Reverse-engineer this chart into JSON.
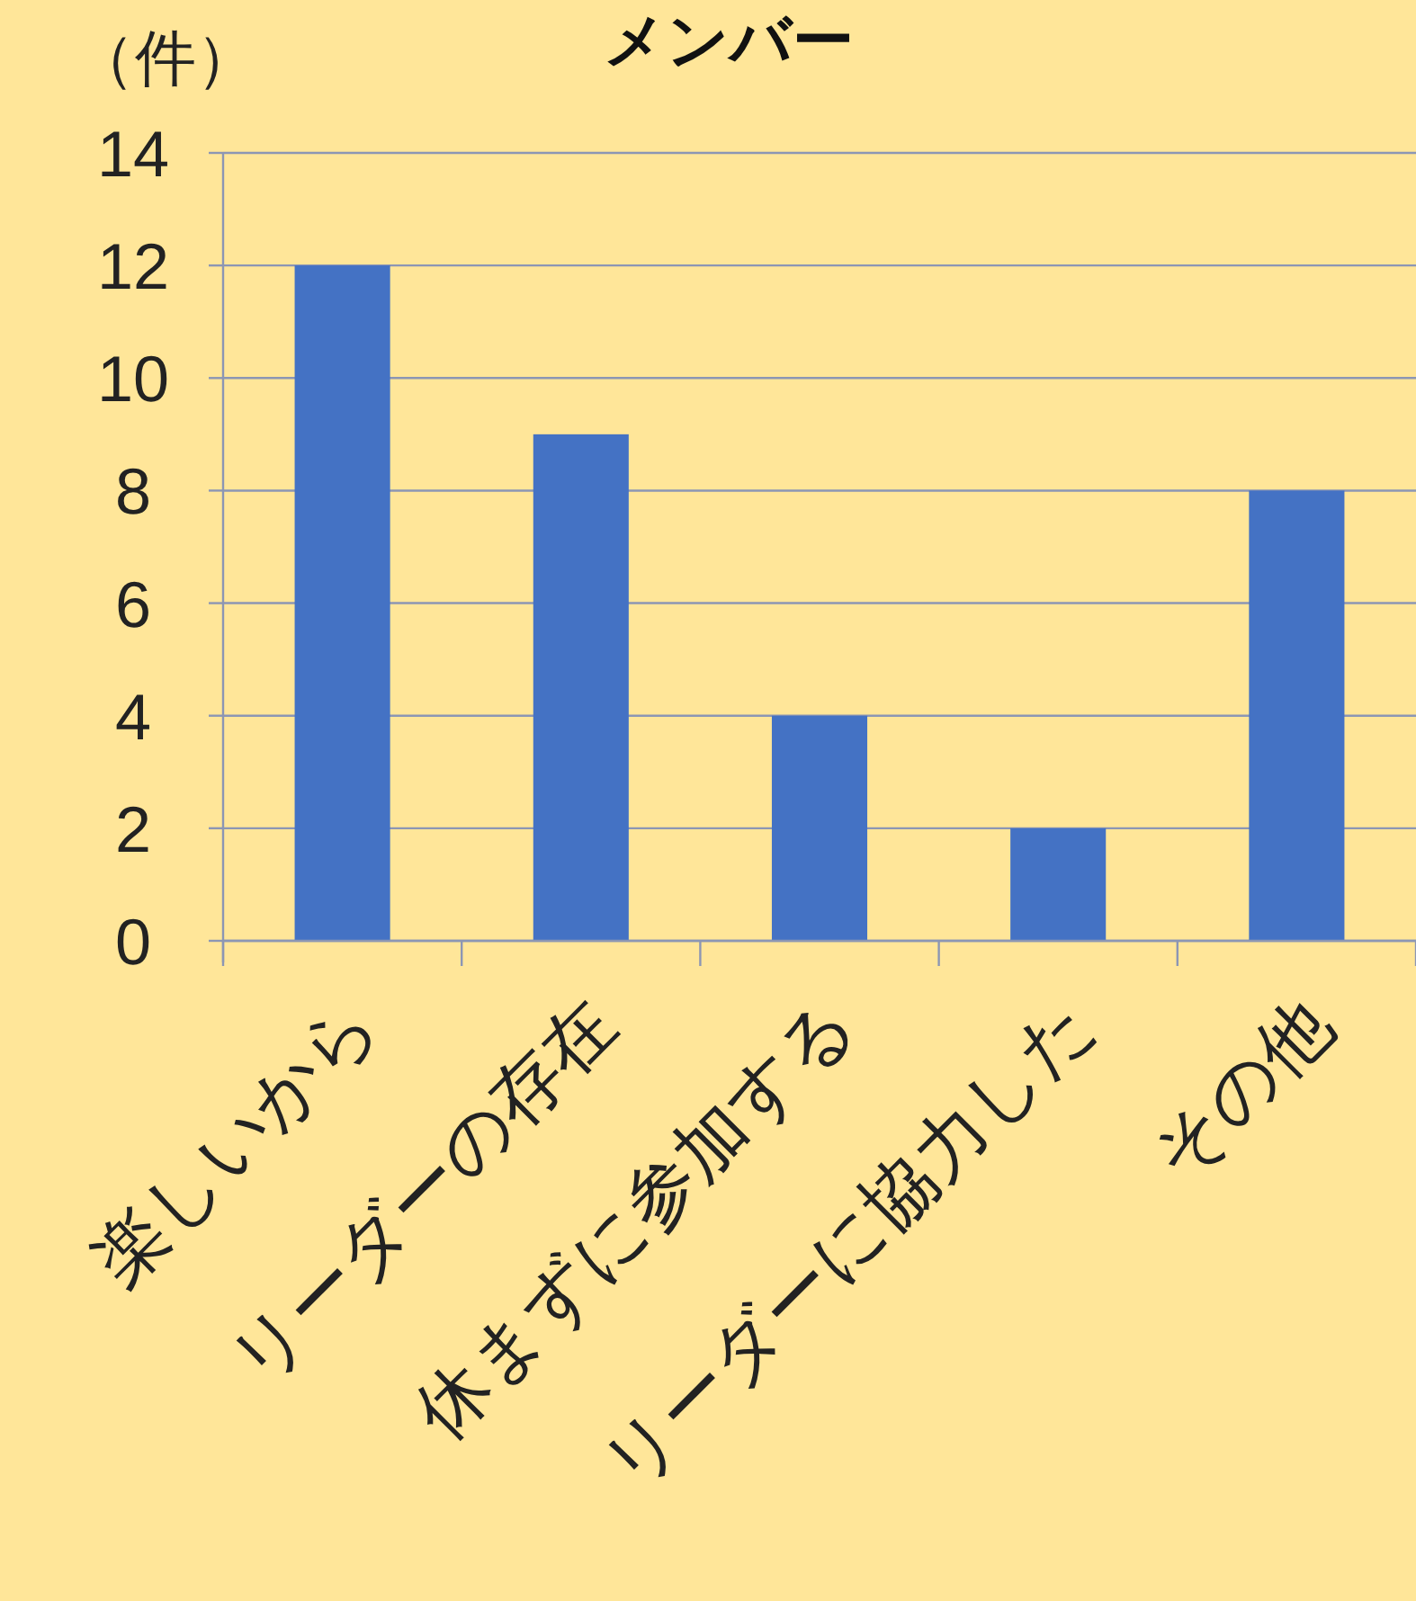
{
  "chart_data": {
    "type": "bar",
    "title": "メンバー",
    "ylabel": "（件）",
    "categories": [
      "楽しいから",
      "リーダーの存在",
      "休まずに参加する",
      "リーダーに協力した",
      "その他"
    ],
    "values": [
      12,
      9,
      4,
      2,
      8
    ],
    "color": "#4472c4",
    "ylim": [
      0,
      14
    ],
    "yticks": [
      0,
      2,
      4,
      6,
      8,
      10,
      12,
      14
    ],
    "grid": "y"
  }
}
